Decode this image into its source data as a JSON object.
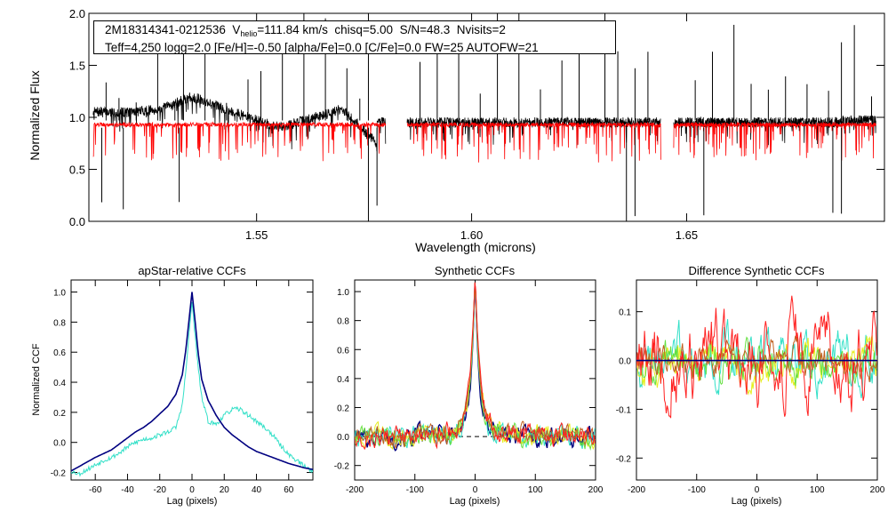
{
  "info_box": {
    "star_id": "2M18314341-0212536",
    "vhelio_prefix": "V",
    "vhelio_sub": "helio",
    "vhelio_value": "=111.84 km/s",
    "chisq": "chisq=5.00",
    "snr": "S/N=48.3",
    "nvisits": "Nvisits=2",
    "params_line": "Teff=4,250 logg=2.0 [Fe/H]=-0.50 [alpha/Fe]=0.0 [C/Fe]=0.0 FW=25 AUTOFW=21"
  },
  "colors": {
    "observed": "#000000",
    "model": "#ff0000",
    "navy": "#000080",
    "cyan": "#33e0c8",
    "yellow": "#e6ee20",
    "green": "#66e040",
    "orange": "#c06020",
    "red": "#ff2020"
  },
  "chart_data": [
    {
      "type": "line",
      "name": "spectrum",
      "title": "",
      "xlabel": "Wavelength (microns)",
      "ylabel": "Normalized Flux",
      "xlim": [
        1.511,
        1.696
      ],
      "ylim": [
        0.0,
        2.0
      ],
      "xticks": [
        1.55,
        1.6,
        1.65
      ],
      "xtick_labels": [
        "1.55",
        "1.60",
        "1.65"
      ],
      "yticks": [
        0.0,
        0.5,
        1.0,
        1.5,
        2.0
      ],
      "ytick_labels": [
        "0.0",
        "0.5",
        "1.0",
        "1.5",
        "2.0"
      ],
      "chips": [
        [
          1.512,
          1.58
        ],
        [
          1.585,
          1.644
        ],
        [
          1.647,
          1.694
        ]
      ],
      "series": [
        {
          "name": "observed",
          "color": "black",
          "continuum": 0.95,
          "noise": 0.05
        },
        {
          "name": "model",
          "color": "red",
          "continuum": 0.93,
          "noise": 0.02
        }
      ],
      "observed_features": [
        {
          "x": 1.52,
          "y": 1.05
        },
        {
          "x": 1.528,
          "y": 1.08
        },
        {
          "x": 1.532,
          "y": 1.15
        },
        {
          "x": 1.535,
          "y": 1.2
        },
        {
          "x": 1.54,
          "y": 1.12
        },
        {
          "x": 1.548,
          "y": 1.0
        },
        {
          "x": 1.555,
          "y": 0.9
        },
        {
          "x": 1.562,
          "y": 0.98
        },
        {
          "x": 1.57,
          "y": 1.08
        },
        {
          "x": 1.578,
          "y": 0.75
        }
      ],
      "spikes": [
        1.515,
        1.518,
        1.522,
        1.527,
        1.531,
        1.533,
        1.538,
        1.543,
        1.548,
        1.551,
        1.556,
        1.561,
        1.566,
        1.571,
        1.574,
        1.576,
        1.588,
        1.592,
        1.597,
        1.602,
        1.606,
        1.611,
        1.616,
        1.621,
        1.625,
        1.631,
        1.634,
        1.638,
        1.641,
        1.652,
        1.656,
        1.661,
        1.665,
        1.669,
        1.673,
        1.678,
        1.683,
        1.686,
        1.689,
        1.693
      ],
      "dips": [
        1.514,
        1.519,
        1.532,
        1.576,
        1.578,
        1.636,
        1.638,
        1.654,
        1.684,
        1.686
      ]
    },
    {
      "type": "line",
      "name": "apstar_ccf",
      "title": "apStar-relative CCFs",
      "xlabel": "Lag (pixels)",
      "ylabel": "Normalized CCF",
      "xlim": [
        -75,
        75
      ],
      "ylim": [
        -0.25,
        1.08
      ],
      "xticks": [
        -60,
        -40,
        -20,
        0,
        20,
        40,
        60
      ],
      "xtick_labels": [
        "-60",
        "-40",
        "-20",
        "0",
        "20",
        "40",
        "60"
      ],
      "yticks": [
        -0.2,
        0.0,
        0.2,
        0.4,
        0.6,
        0.8,
        1.0
      ],
      "ytick_labels": [
        "-0.2",
        "0.0",
        "0.2",
        "0.4",
        "0.6",
        "0.8",
        "1.0"
      ],
      "series": [
        {
          "name": "ccf-1",
          "color": "navy",
          "x": [
            -75,
            -70,
            -60,
            -50,
            -40,
            -35,
            -30,
            -25,
            -20,
            -15,
            -10,
            -6,
            -4,
            -2,
            0,
            2,
            4,
            6,
            10,
            15,
            20,
            25,
            30,
            35,
            40,
            50,
            60,
            70,
            75
          ],
          "values": [
            -0.19,
            -0.16,
            -0.1,
            -0.05,
            0.03,
            0.07,
            0.1,
            0.14,
            0.19,
            0.24,
            0.32,
            0.45,
            0.6,
            0.8,
            1.0,
            0.8,
            0.58,
            0.42,
            0.28,
            0.18,
            0.1,
            0.05,
            0.01,
            -0.03,
            -0.06,
            -0.1,
            -0.14,
            -0.17,
            -0.18
          ]
        },
        {
          "name": "ccf-2",
          "color": "cyan",
          "x": [
            -75,
            -70,
            -65,
            -60,
            -55,
            -50,
            -45,
            -40,
            -35,
            -30,
            -25,
            -20,
            -15,
            -10,
            -6,
            -4,
            -2,
            0,
            2,
            4,
            6,
            10,
            15,
            20,
            25,
            30,
            35,
            40,
            45,
            50,
            55,
            60,
            65,
            70,
            75
          ],
          "values": [
            -0.19,
            -0.21,
            -0.18,
            -0.15,
            -0.12,
            -0.1,
            -0.07,
            -0.03,
            0.0,
            0.02,
            0.03,
            0.05,
            0.07,
            0.1,
            0.25,
            0.45,
            0.7,
            0.94,
            0.7,
            0.48,
            0.3,
            0.14,
            0.12,
            0.18,
            0.22,
            0.22,
            0.18,
            0.14,
            0.1,
            0.05,
            -0.02,
            -0.08,
            -0.12,
            -0.16,
            -0.19
          ]
        }
      ]
    },
    {
      "type": "line",
      "name": "synthetic_ccf",
      "title": "Synthetic CCFs",
      "xlabel": "Lag (pixels)",
      "ylabel": "",
      "xlim": [
        -200,
        200
      ],
      "ylim": [
        -0.3,
        1.08
      ],
      "xticks": [
        -200,
        -100,
        0,
        100,
        200
      ],
      "xtick_labels": [
        "-200",
        "-100",
        "0",
        "100",
        "200"
      ],
      "yticks": [
        -0.2,
        0.0,
        0.2,
        0.4,
        0.6,
        0.8,
        1.0
      ],
      "ytick_labels": [
        "-0.2",
        "0.0",
        "0.2",
        "0.4",
        "0.6",
        "0.8",
        "1.0"
      ],
      "peak": 1.0,
      "noise_amplitude": 0.06,
      "reference_line": 0.0,
      "series": [
        {
          "name": "ccf-navy",
          "color": "navy"
        },
        {
          "name": "ccf-cyan",
          "color": "cyan"
        },
        {
          "name": "ccf-yellow",
          "color": "yellow"
        },
        {
          "name": "ccf-green",
          "color": "green"
        },
        {
          "name": "ccf-orange",
          "color": "orange"
        },
        {
          "name": "ccf-red",
          "color": "red"
        }
      ]
    },
    {
      "type": "line",
      "name": "difference_ccf",
      "title": "Difference Synthetic CCFs",
      "xlabel": "Lag (pixels)",
      "ylabel": "",
      "xlim": [
        -200,
        200
      ],
      "ylim": [
        -0.245,
        0.165
      ],
      "xticks": [
        -200,
        -100,
        0,
        100,
        200
      ],
      "xtick_labels": [
        "-200",
        "-100",
        "0",
        "100",
        "200"
      ],
      "yticks": [
        -0.2,
        -0.1,
        0.0,
        0.1
      ],
      "ytick_labels": [
        "-0.2",
        "-0.1",
        "0.0",
        "0.1"
      ],
      "reference_line": 0.0,
      "series": [
        {
          "name": "diff-cyan",
          "color": "cyan",
          "amplitude": 0.07
        },
        {
          "name": "diff-yellow",
          "color": "yellow",
          "amplitude": 0.05
        },
        {
          "name": "diff-green",
          "color": "green",
          "amplitude": 0.05
        },
        {
          "name": "diff-orange",
          "color": "orange",
          "amplitude": 0.04
        },
        {
          "name": "diff-red",
          "color": "red",
          "amplitude": 0.1
        }
      ]
    }
  ]
}
